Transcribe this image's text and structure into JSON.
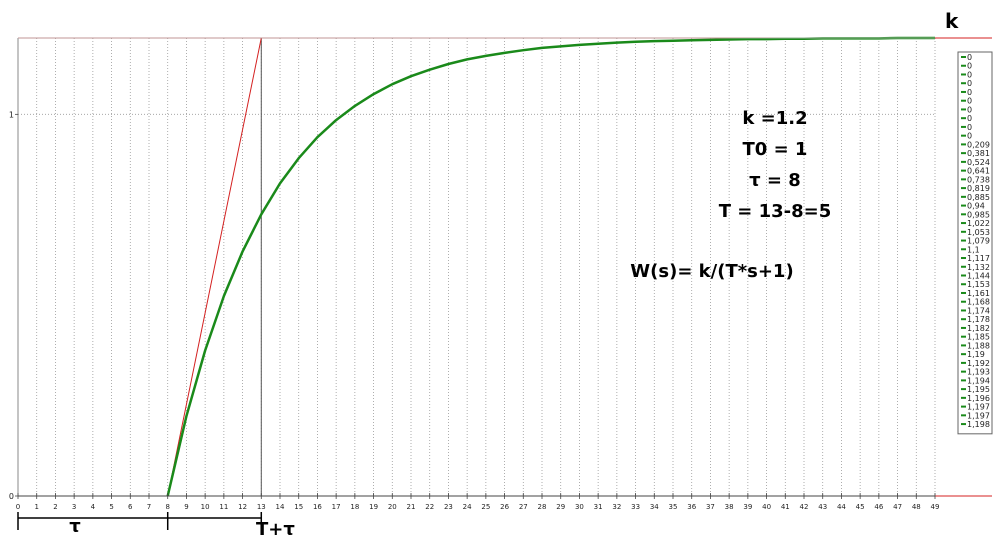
{
  "chart_data": {
    "type": "line",
    "corner_label": "k",
    "x_ticks": [
      0,
      1,
      2,
      3,
      4,
      5,
      6,
      7,
      8,
      9,
      10,
      11,
      12,
      13,
      14,
      15,
      16,
      17,
      18,
      19,
      20,
      21,
      22,
      23,
      24,
      25,
      26,
      27,
      28,
      29,
      30,
      31,
      32,
      33,
      34,
      35,
      36,
      37,
      38,
      39,
      40,
      41,
      42,
      43,
      44,
      45,
      46,
      47,
      48,
      49
    ],
    "y_ticks": [
      0,
      1
    ],
    "xlim": [
      0,
      49
    ],
    "ylim": [
      0,
      1.2
    ],
    "grid": true,
    "annotations": [
      "k =1.2",
      "T0 = 1",
      "τ = 8",
      "T = 13-8=5"
    ],
    "formula": "W(s)= k/(T*s+1)",
    "bottom_labels": {
      "tau": "τ",
      "t_plus_tau": "T+τ"
    },
    "series": [
      {
        "color": "#1a8a1a",
        "x": [
          8,
          9,
          10,
          11,
          12,
          13,
          14,
          15,
          16,
          17,
          18,
          19,
          20,
          21,
          22,
          23,
          24,
          25,
          26,
          27,
          28,
          29,
          30,
          31,
          32,
          33,
          34,
          35,
          36,
          37,
          38,
          39,
          40,
          41,
          42,
          43,
          44,
          45,
          46,
          47,
          48,
          49
        ],
        "y": [
          0,
          0.209,
          0.381,
          0.524,
          0.641,
          0.738,
          0.819,
          0.885,
          0.94,
          0.985,
          1.022,
          1.053,
          1.079,
          1.1,
          1.117,
          1.132,
          1.144,
          1.153,
          1.161,
          1.168,
          1.174,
          1.178,
          1.182,
          1.185,
          1.188,
          1.19,
          1.192,
          1.193,
          1.194,
          1.195,
          1.196,
          1.197,
          1.197,
          1.198,
          1.198,
          1.199,
          1.199,
          1.199,
          1.199,
          1.2,
          1.2,
          1.2
        ]
      }
    ],
    "tangent_line": {
      "color": "#d42020",
      "x": [
        8,
        13
      ],
      "y": [
        0,
        1.2
      ]
    },
    "reference_lines": {
      "color": "#d42020",
      "y": [
        0,
        1.2
      ]
    },
    "legend_values": [
      "0",
      "0",
      "0",
      "0",
      "0",
      "0",
      "0",
      "0",
      "0",
      "0",
      "0,209",
      "0,381",
      "0,524",
      "0,641",
      "0,738",
      "0,819",
      "0,885",
      "0,94",
      "0,985",
      "1,022",
      "1,053",
      "1,079",
      "1,1",
      "1,117",
      "1,132",
      "1,144",
      "1,153",
      "1,161",
      "1,168",
      "1,174",
      "1,178",
      "1,182",
      "1,185",
      "1,188",
      "1,19",
      "1,192",
      "1,193",
      "1,194",
      "1,195",
      "1,196",
      "1,197",
      "1,197",
      "1,198"
    ]
  }
}
